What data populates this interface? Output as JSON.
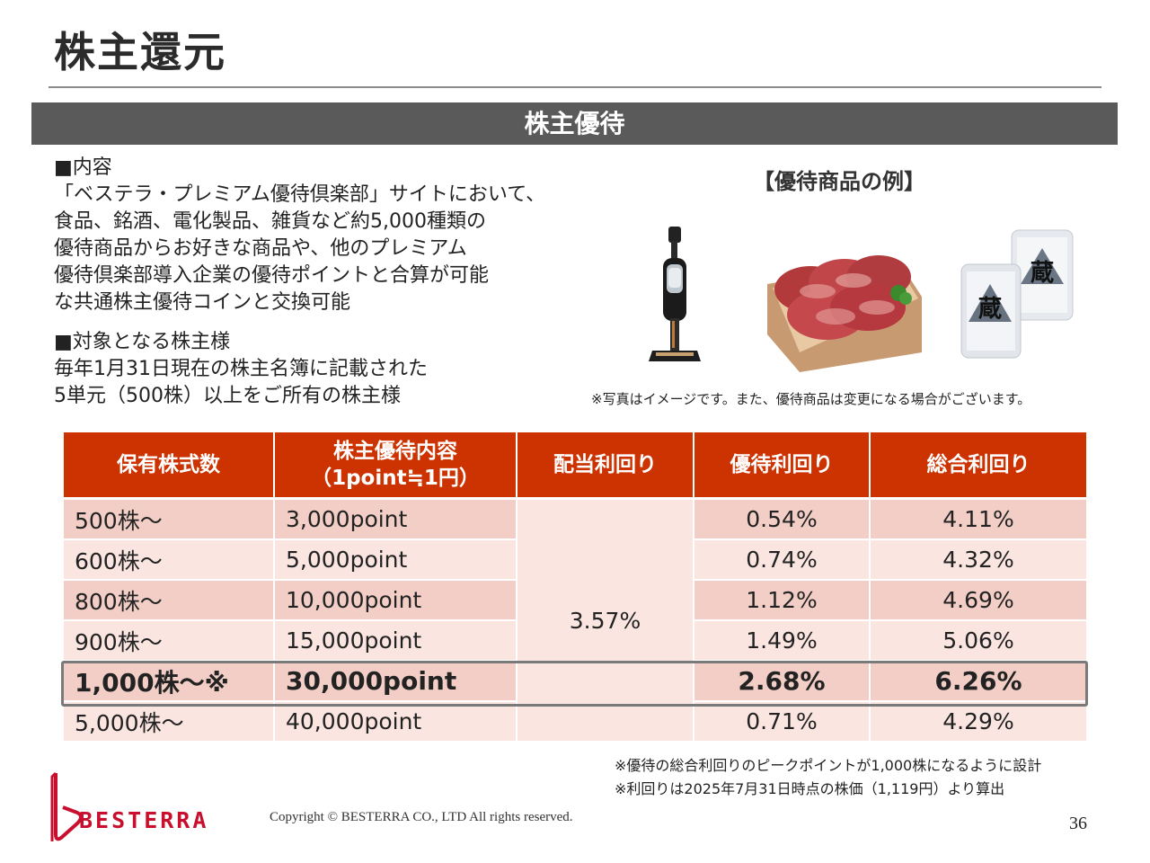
{
  "page_title": "株主還元",
  "section_title": "株主優待",
  "content": {
    "heading": "■内容",
    "lines": [
      "「ベステラ・プレミアム優待倶楽部」サイトにおいて、",
      "食品、銘酒、電化製品、雑貨など約5,000種類の",
      "優待商品からお好きな商品や、他のプレミアム",
      "優待倶楽部導入企業の優待ポイントと合算が可能",
      "な共通株主優待コインと交換可能"
    ]
  },
  "target": {
    "heading": "■対象となる株主様",
    "lines": [
      "毎年1月31日現在の株主名簿に記載された",
      "5単元（500株）以上をご所有の株主様"
    ]
  },
  "examples": {
    "title": "【優待商品の例】",
    "photos": [
      "vacuum-cleaner",
      "wagyu-beef",
      "rice-bags"
    ],
    "rice_label": "蔵",
    "note": "※写真はイメージです。また、優待商品は変更になる場合がございます。"
  },
  "table": {
    "headers": {
      "shares": "保有株式数",
      "benefit_line1": "株主優待内容",
      "benefit_line2": "（1point≒1円）",
      "dividend_yield": "配当利回り",
      "benefit_yield": "優待利回り",
      "total_yield": "総合利回り"
    },
    "dividend_yield_all": "3.57%",
    "rows": [
      {
        "shares": "500株〜",
        "points": "3,000point",
        "benefit_yield": "0.54%",
        "total_yield": "4.11%"
      },
      {
        "shares": "600株〜",
        "points": "5,000point",
        "benefit_yield": "0.74%",
        "total_yield": "4.32%"
      },
      {
        "shares": "800株〜",
        "points": "10,000point",
        "benefit_yield": "1.12%",
        "total_yield": "4.69%"
      },
      {
        "shares": "900株〜",
        "points": "15,000point",
        "benefit_yield": "1.49%",
        "total_yield": "5.06%"
      },
      {
        "shares": "1,000株〜※",
        "points": "30,000point",
        "benefit_yield": "2.68%",
        "total_yield": "6.26%"
      },
      {
        "shares": "5,000株〜",
        "points": "40,000point",
        "benefit_yield": "0.71%",
        "total_yield": "4.29%"
      }
    ]
  },
  "footnotes": [
    "※優待の総合利回りのピークポイントが1,000株になるように設計",
    "※利回りは2025年7月31日時点の株価（1,119円）より算出"
  ],
  "logo_text": "BESTERRA",
  "copyright": "Copyright © BESTERRA CO., LTD All rights reserved.",
  "page_number": "36",
  "colors": {
    "accent": "#cc3300",
    "row_dark": "#f2cec6",
    "row_light": "#fae5e1",
    "section_bar": "#5a5a5a"
  }
}
